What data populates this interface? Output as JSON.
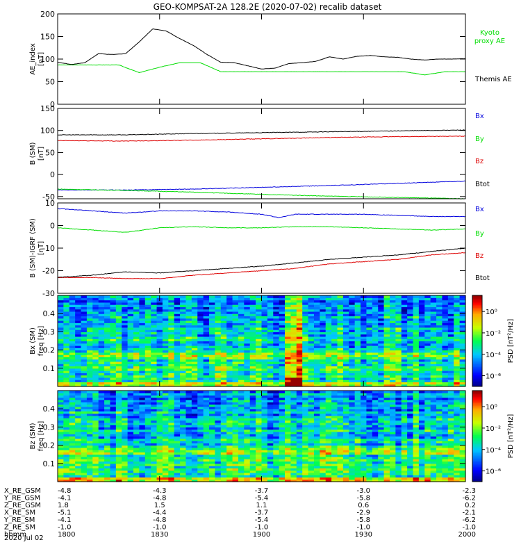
{
  "title": "GEO-KOMPSAT-2A 128.2E (2020-07-02) recalib dataset",
  "chart_data": [
    {
      "type": "line",
      "ylabel_lines": [
        "AE_index",
        "[nT]"
      ],
      "ylim": [
        0,
        200
      ],
      "yticks": [
        0,
        50,
        100,
        150,
        200
      ],
      "x_range": [
        0,
        120
      ],
      "legend": "right",
      "series": [
        {
          "name": "Kyoto proxy AE",
          "name_lines": [
            "Kyoto",
            "proxy AE"
          ],
          "color": "#00dd00",
          "x": [
            0,
            6,
            12,
            18,
            24,
            30,
            36,
            42,
            48,
            54,
            60,
            66,
            72,
            78,
            84,
            90,
            96,
            102,
            108,
            114,
            120
          ],
          "values": [
            87,
            87,
            87,
            87,
            70,
            82,
            92,
            92,
            72,
            72,
            72,
            72,
            72,
            72,
            72,
            72,
            72,
            72,
            65,
            72,
            72
          ]
        },
        {
          "name": "Themis AE",
          "name_lines": [
            "Themis AE"
          ],
          "color": "#000000",
          "x": [
            0,
            4,
            8,
            12,
            16,
            20,
            24,
            28,
            32,
            36,
            40,
            44,
            48,
            52,
            56,
            60,
            64,
            68,
            72,
            76,
            80,
            84,
            88,
            92,
            96,
            100,
            104,
            108,
            112,
            116,
            120
          ],
          "values": [
            93,
            88,
            92,
            112,
            110,
            112,
            138,
            167,
            162,
            145,
            130,
            110,
            93,
            92,
            85,
            78,
            80,
            90,
            92,
            95,
            105,
            100,
            106,
            108,
            105,
            104,
            100,
            98,
            100,
            100,
            101
          ]
        }
      ]
    },
    {
      "type": "line",
      "ylabel_lines": [
        "B (SM)",
        "[nT]"
      ],
      "ylim": [
        -55,
        150
      ],
      "yticks": [
        -50,
        0,
        50,
        100,
        150
      ],
      "x_range": [
        0,
        120
      ],
      "legend": "right",
      "series": [
        {
          "name": "Bx",
          "color": "#0000dd",
          "x": [
            0,
            20,
            40,
            60,
            80,
            100,
            120
          ],
          "values": [
            -35,
            -35,
            -33,
            -29,
            -25,
            -20,
            -15
          ]
        },
        {
          "name": "By",
          "color": "#00dd00",
          "x": [
            0,
            20,
            40,
            60,
            80,
            100,
            120
          ],
          "values": [
            -33,
            -36,
            -40,
            -45,
            -49,
            -52,
            -55
          ]
        },
        {
          "name": "Bz",
          "color": "#dd0000",
          "x": [
            0,
            20,
            40,
            60,
            80,
            100,
            120
          ],
          "values": [
            77,
            76,
            78,
            81,
            84,
            86,
            87
          ]
        },
        {
          "name": "Btot",
          "color": "#000000",
          "x": [
            0,
            20,
            40,
            60,
            80,
            100,
            120
          ],
          "values": [
            90,
            90,
            93,
            95,
            97,
            99,
            101
          ]
        }
      ]
    },
    {
      "type": "line",
      "ylabel_lines": [
        "B (SM)-IGRF (SM)",
        "[nT]"
      ],
      "ylim": [
        -30,
        10
      ],
      "yticks": [
        -30,
        -20,
        -10,
        0,
        10
      ],
      "x_range": [
        0,
        120
      ],
      "legend": "right",
      "series": [
        {
          "name": "Bx",
          "color": "#0000dd",
          "x": [
            0,
            10,
            20,
            30,
            40,
            50,
            60,
            65,
            70,
            80,
            90,
            100,
            110,
            120
          ],
          "values": [
            7.5,
            6.5,
            5.5,
            6.5,
            6.5,
            6,
            5,
            3.5,
            5,
            5,
            5,
            4.5,
            4,
            4
          ]
        },
        {
          "name": "By",
          "color": "#00dd00",
          "x": [
            0,
            10,
            20,
            30,
            40,
            50,
            60,
            70,
            80,
            90,
            100,
            110,
            120
          ],
          "values": [
            -1,
            -2,
            -3,
            -1,
            -0.5,
            -1,
            -1,
            -0.5,
            -0.5,
            -1,
            -1.5,
            -2,
            -1.5
          ]
        },
        {
          "name": "Bz",
          "color": "#dd0000",
          "x": [
            0,
            10,
            20,
            30,
            40,
            50,
            60,
            70,
            80,
            90,
            100,
            110,
            120
          ],
          "values": [
            -23,
            -23,
            -23.5,
            -23.5,
            -22,
            -21,
            -20,
            -19,
            -17,
            -16,
            -15,
            -13,
            -12
          ]
        },
        {
          "name": "Btot",
          "color": "#000000",
          "x": [
            0,
            10,
            20,
            30,
            40,
            50,
            60,
            70,
            80,
            90,
            100,
            110,
            120
          ],
          "values": [
            -23,
            -22,
            -20.5,
            -21,
            -20,
            -19,
            -18,
            -16.5,
            -15,
            -14,
            -13,
            -11.5,
            -10
          ]
        }
      ]
    },
    {
      "type": "heatmap",
      "ylabel_lines": [
        "Bx (SM)",
        "freq [Hz]"
      ],
      "ylim": [
        0,
        0.5
      ],
      "yticks": [
        0.1,
        0.2,
        0.3,
        0.4
      ],
      "colorbar_label": "PSD [nT²/Hz]",
      "colorbar_ticks": [
        "10⁰",
        "10⁻²",
        "10⁻⁴",
        "10⁻⁶"
      ],
      "colorbar_tick_values": [
        0,
        -2,
        -4,
        -6
      ],
      "colorbar_range": [
        -7,
        1.5
      ]
    },
    {
      "type": "heatmap",
      "ylabel_lines": [
        "Bz (SM)",
        "freq [Hz]"
      ],
      "ylim": [
        0,
        0.5
      ],
      "yticks": [
        0.1,
        0.2,
        0.3,
        0.4
      ],
      "colorbar_label": "PSD [nT²/Hz]",
      "colorbar_ticks": [
        "10⁰",
        "10⁻²",
        "10⁻⁴",
        "10⁻⁶"
      ],
      "colorbar_tick_values": [
        0,
        -2,
        -4,
        -6
      ],
      "colorbar_range": [
        -7,
        1.5
      ]
    }
  ],
  "x_axis": {
    "tick_positions": [
      0,
      30,
      60,
      90,
      120
    ],
    "rows": [
      {
        "label": "X_RE_GSM",
        "values": [
          "-4.8",
          "-4.3",
          "-3.7",
          "-3.0",
          "-2.3"
        ]
      },
      {
        "label": "Y_RE_GSM",
        "values": [
          "-4.1",
          "-4.8",
          "-5.4",
          "-5.8",
          "-6.2"
        ]
      },
      {
        "label": "Z_RE_GSM",
        "values": [
          "1.8",
          "1.5",
          "1.1",
          "0.6",
          "0.2"
        ]
      },
      {
        "label": "X_RE_SM",
        "values": [
          "-5.1",
          "-4.4",
          "-3.7",
          "-2.9",
          "-2.1"
        ]
      },
      {
        "label": "Y_RE_SM",
        "values": [
          "-4.1",
          "-4.8",
          "-5.4",
          "-5.8",
          "-6.2"
        ]
      },
      {
        "label": "Z_RE_SM",
        "values": [
          "-1.0",
          "-1.0",
          "-1.0",
          "-1.0",
          "-1.0"
        ]
      },
      {
        "label": "hhmm",
        "values": [
          "1800",
          "1830",
          "1900",
          "1930",
          "2000"
        ]
      }
    ],
    "date_label": "2020 Jul 02"
  }
}
